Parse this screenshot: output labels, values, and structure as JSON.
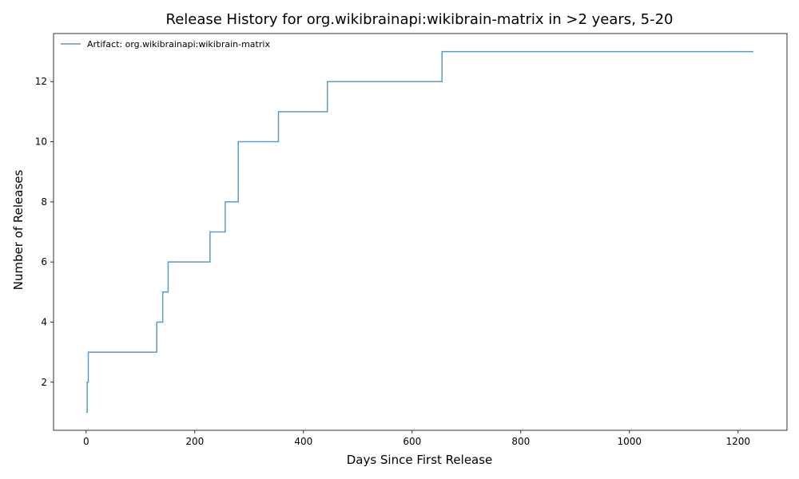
{
  "chart_data": {
    "type": "line",
    "step": "post",
    "title": "Release History for org.wikibrainapi:wikibrain-matrix in >2 years, 5-20",
    "xlabel": "Days Since First Release",
    "ylabel": "Number of Releases",
    "xlim": [
      -60,
      1290
    ],
    "ylim": [
      0.4,
      13.6
    ],
    "xticks": [
      0,
      200,
      400,
      600,
      800,
      1000,
      1200
    ],
    "yticks": [
      2,
      4,
      6,
      8,
      10,
      12
    ],
    "xtick_labels": [
      "0",
      "200",
      "400",
      "600",
      "800",
      "1000",
      "1200"
    ],
    "ytick_labels": [
      "2",
      "4",
      "6",
      "8",
      "10",
      "12"
    ],
    "grid": false,
    "legend_position": "top-left",
    "series": [
      {
        "name": "Artifact: org.wikibrainapi:wikibrain-matrix",
        "color": "#5b9bc8",
        "x": [
          0,
          2,
          4,
          130,
          141,
          151,
          228,
          256,
          280,
          354,
          444,
          655,
          1228
        ],
        "y": [
          1,
          2,
          3,
          4,
          5,
          6,
          7,
          8,
          10,
          11,
          12,
          13,
          13
        ]
      }
    ]
  }
}
